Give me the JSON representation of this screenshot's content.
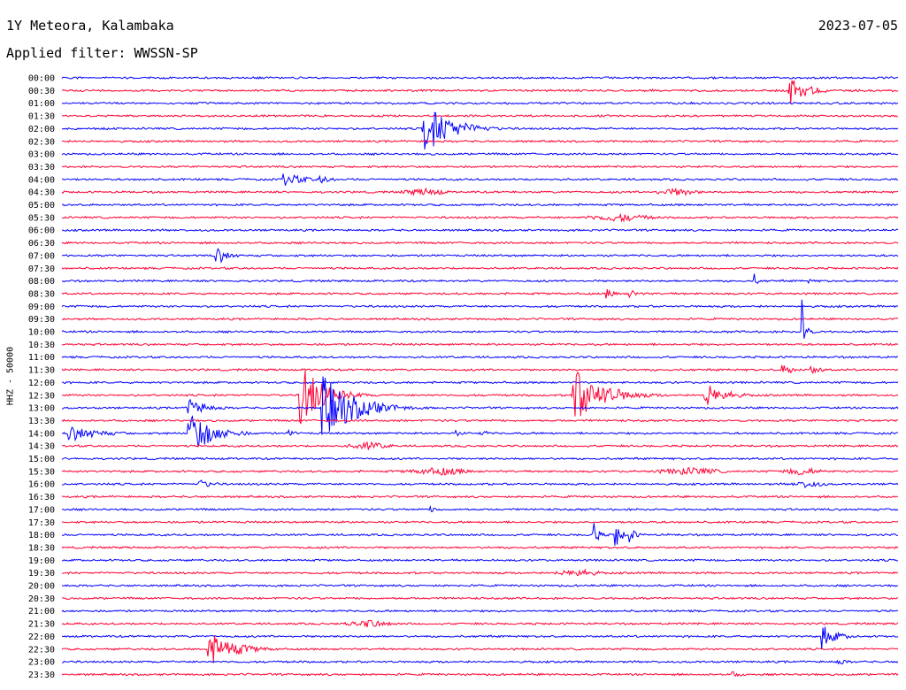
{
  "header": {
    "station": "1Y Meteora, Kalambaka",
    "date": "2023-07-05",
    "filter": "Applied filter: WWSSN-SP"
  },
  "chart_data": {
    "type": "line",
    "kind": "helicorder",
    "channel_label": "HHZ - 50000",
    "trace_colors": [
      "#0000ff",
      "#ff0033"
    ],
    "row_labels": [
      "00:00",
      "00:30",
      "01:00",
      "01:30",
      "02:00",
      "02:30",
      "03:00",
      "03:30",
      "04:00",
      "04:30",
      "05:00",
      "05:30",
      "06:00",
      "06:30",
      "07:00",
      "07:30",
      "08:00",
      "08:30",
      "09:00",
      "09:30",
      "10:00",
      "10:30",
      "11:00",
      "11:30",
      "12:00",
      "12:30",
      "13:00",
      "13:30",
      "14:00",
      "14:30",
      "15:00",
      "15:30",
      "16:00",
      "16:30",
      "17:00",
      "17:30",
      "18:00",
      "18:30",
      "19:00",
      "19:30",
      "20:00",
      "20:30",
      "21:00",
      "21:30",
      "22:00",
      "22:30",
      "23:00",
      "23:30"
    ],
    "minutes_per_line": 30,
    "events": [
      {
        "row": 1,
        "minute": 26.0,
        "amp": 2.0,
        "dur": 1.2
      },
      {
        "row": 4,
        "minute": 12.9,
        "amp": 3.2,
        "dur": 2.0
      },
      {
        "row": 8,
        "minute": 7.9,
        "amp": 0.8,
        "dur": 1.6
      },
      {
        "row": 8,
        "minute": 9.2,
        "amp": 0.5,
        "dur": 1.0
      },
      {
        "row": 14,
        "minute": 5.5,
        "amp": 1.2,
        "dur": 0.8
      },
      {
        "row": 16,
        "minute": 24.8,
        "amp": 1.0,
        "dur": 0.2
      },
      {
        "row": 16,
        "minute": 26.7,
        "amp": 0.3,
        "dur": 0.5
      },
      {
        "row": 17,
        "minute": 19.5,
        "amp": 0.6,
        "dur": 0.7
      },
      {
        "row": 17,
        "minute": 20.3,
        "amp": 0.5,
        "dur": 0.8
      },
      {
        "row": 20,
        "minute": 26.5,
        "amp": 4.5,
        "dur": 0.2
      },
      {
        "row": 23,
        "minute": 25.8,
        "amp": 0.7,
        "dur": 0.9
      },
      {
        "row": 23,
        "minute": 26.8,
        "amp": 0.6,
        "dur": 0.8
      },
      {
        "row": 25,
        "minute": 8.5,
        "amp": 4.0,
        "dur": 1.6
      },
      {
        "row": 25,
        "minute": 18.2,
        "amp": 3.5,
        "dur": 2.2
      },
      {
        "row": 25,
        "minute": 23.0,
        "amp": 1.5,
        "dur": 1.5
      },
      {
        "row": 26,
        "minute": 4.5,
        "amp": 1.2,
        "dur": 1.3
      },
      {
        "row": 26,
        "minute": 9.3,
        "amp": 4.0,
        "dur": 2.3
      },
      {
        "row": 28,
        "minute": 0.2,
        "amp": 1.0,
        "dur": 2.3
      },
      {
        "row": 28,
        "minute": 4.5,
        "amp": 3.0,
        "dur": 1.6
      },
      {
        "row": 28,
        "minute": 5.8,
        "amp": 0.5,
        "dur": 0.8
      },
      {
        "row": 28,
        "minute": 8.1,
        "amp": 0.4,
        "dur": 0.6
      },
      {
        "row": 28,
        "minute": 14.1,
        "amp": 0.4,
        "dur": 0.5
      },
      {
        "row": 28,
        "minute": 15.0,
        "amp": 0.5,
        "dur": 0.5
      },
      {
        "row": 32,
        "minute": 4.9,
        "amp": 0.6,
        "dur": 1.0
      },
      {
        "row": 34,
        "minute": 13.2,
        "amp": 0.4,
        "dur": 0.6
      },
      {
        "row": 36,
        "minute": 19.0,
        "amp": 2.0,
        "dur": 0.3
      },
      {
        "row": 36,
        "minute": 19.8,
        "amp": 2.5,
        "dur": 0.3
      },
      {
        "row": 36,
        "minute": 20.3,
        "amp": 1.5,
        "dur": 0.3
      },
      {
        "row": 44,
        "minute": 27.2,
        "amp": 1.5,
        "dur": 1.0
      },
      {
        "row": 45,
        "minute": 5.2,
        "amp": 2.0,
        "dur": 2.0
      },
      {
        "row": 46,
        "minute": 27.7,
        "amp": 0.4,
        "dur": 1.0
      },
      {
        "row": 47,
        "minute": 24.0,
        "amp": 0.4,
        "dur": 0.8
      }
    ],
    "noise_bursts": [
      {
        "row": 9,
        "minute": 12.0,
        "dur": 2.0
      },
      {
        "row": 9,
        "minute": 21.0,
        "dur": 2.0
      },
      {
        "row": 11,
        "minute": 18.5,
        "dur": 3.0
      },
      {
        "row": 29,
        "minute": 10.0,
        "dur": 2.0
      },
      {
        "row": 31,
        "minute": 12.0,
        "dur": 3.0
      },
      {
        "row": 31,
        "minute": 21.0,
        "dur": 3.0
      },
      {
        "row": 31,
        "minute": 25.5,
        "dur": 2.0
      },
      {
        "row": 32,
        "minute": 26.0,
        "dur": 1.5
      },
      {
        "row": 39,
        "minute": 17.5,
        "dur": 2.0
      },
      {
        "row": 43,
        "minute": 10.0,
        "dur": 2.0
      }
    ]
  }
}
